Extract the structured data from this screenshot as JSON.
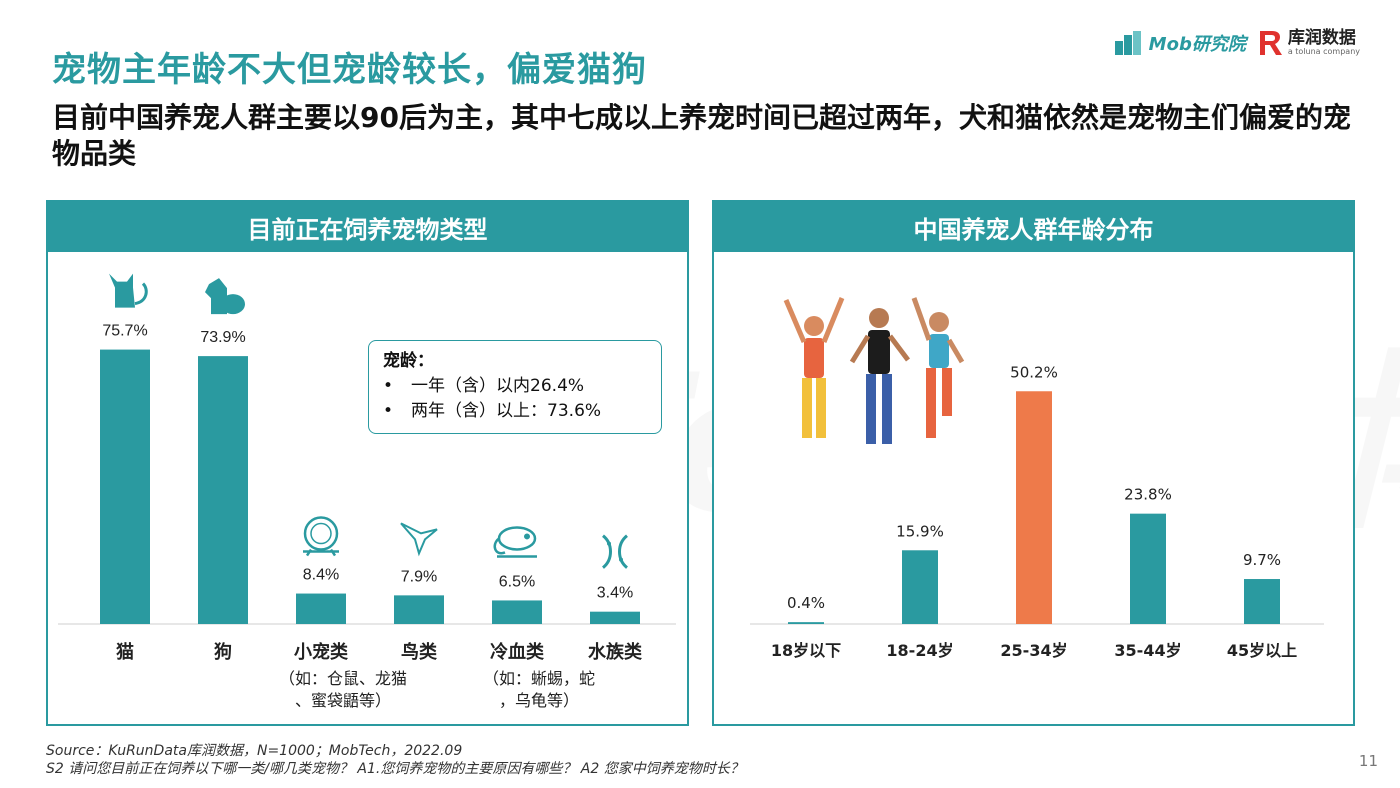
{
  "header": {
    "title": "宠物主年龄不大但宠龄较长，偏爱猫狗",
    "subtitle": "目前中国养宠人群主要以90后为主，其中七成以上养宠时间已超过两年，犬和猫依然是宠物主们偏爱的宠物品类",
    "logo_mob": "Mob研究院",
    "logo_kr": "库润数据",
    "logo_kr_sub": "a toluna company"
  },
  "watermark": "MobTech 袁博",
  "left_panel": {
    "title": "目前正在饲养宠物类型"
  },
  "right_panel": {
    "title": "中国养宠人群年龄分布"
  },
  "note": {
    "title": "宠龄：",
    "items": [
      "一年（含）以内26.4%",
      "两年（含）以上：73.6%"
    ]
  },
  "chart_data": [
    {
      "type": "bar",
      "title": "目前正在饲养宠物类型",
      "categories": [
        "猫",
        "狗",
        "小宠类",
        "鸟类",
        "冷血类",
        "水族类"
      ],
      "category_notes": [
        "",
        "",
        "（如：仓鼠、龙猫、蜜袋鼯等）",
        "",
        "（如：蜥蜴，蛇，乌龟等）",
        ""
      ],
      "values": [
        75.7,
        73.9,
        8.4,
        7.9,
        6.5,
        3.4
      ],
      "value_labels": [
        "75.7%",
        "73.9%",
        "8.4%",
        "7.9%",
        "6.5%",
        "3.4%"
      ],
      "icons": [
        "cat-icon",
        "dog-icon",
        "hamster-wheel-icon",
        "hummingbird-icon",
        "chameleon-icon",
        "fish-icon"
      ],
      "unit": "%",
      "ylim": [
        0,
        80
      ],
      "color": "#2a9aa0",
      "grid": false
    },
    {
      "type": "bar",
      "title": "中国养宠人群年龄分布",
      "categories": [
        "18岁以下",
        "18-24岁",
        "25-34岁",
        "35-44岁",
        "45岁以上"
      ],
      "values": [
        0.4,
        15.9,
        50.2,
        23.8,
        9.7
      ],
      "value_labels": [
        "0.4%",
        "15.9%",
        "50.2%",
        "23.8%",
        "9.7%"
      ],
      "unit": "%",
      "ylim": [
        0,
        55
      ],
      "colors": [
        "#2a9aa0",
        "#2a9aa0",
        "#ee7a4a",
        "#2a9aa0",
        "#2a9aa0"
      ],
      "grid": false
    }
  ],
  "footer": {
    "source": "Source：KuRunData库润数据，N=1000；MobTech，2022.09",
    "question": "S2 请问您目前正在饲养以下哪一类/哪几类宠物？ A1.您饲养宠物的主要原因有哪些？ A2 您家中饲养宠物时长？"
  },
  "page_number": "11",
  "colors": {
    "teal": "#2a9aa0",
    "orange": "#ee7a4a"
  }
}
